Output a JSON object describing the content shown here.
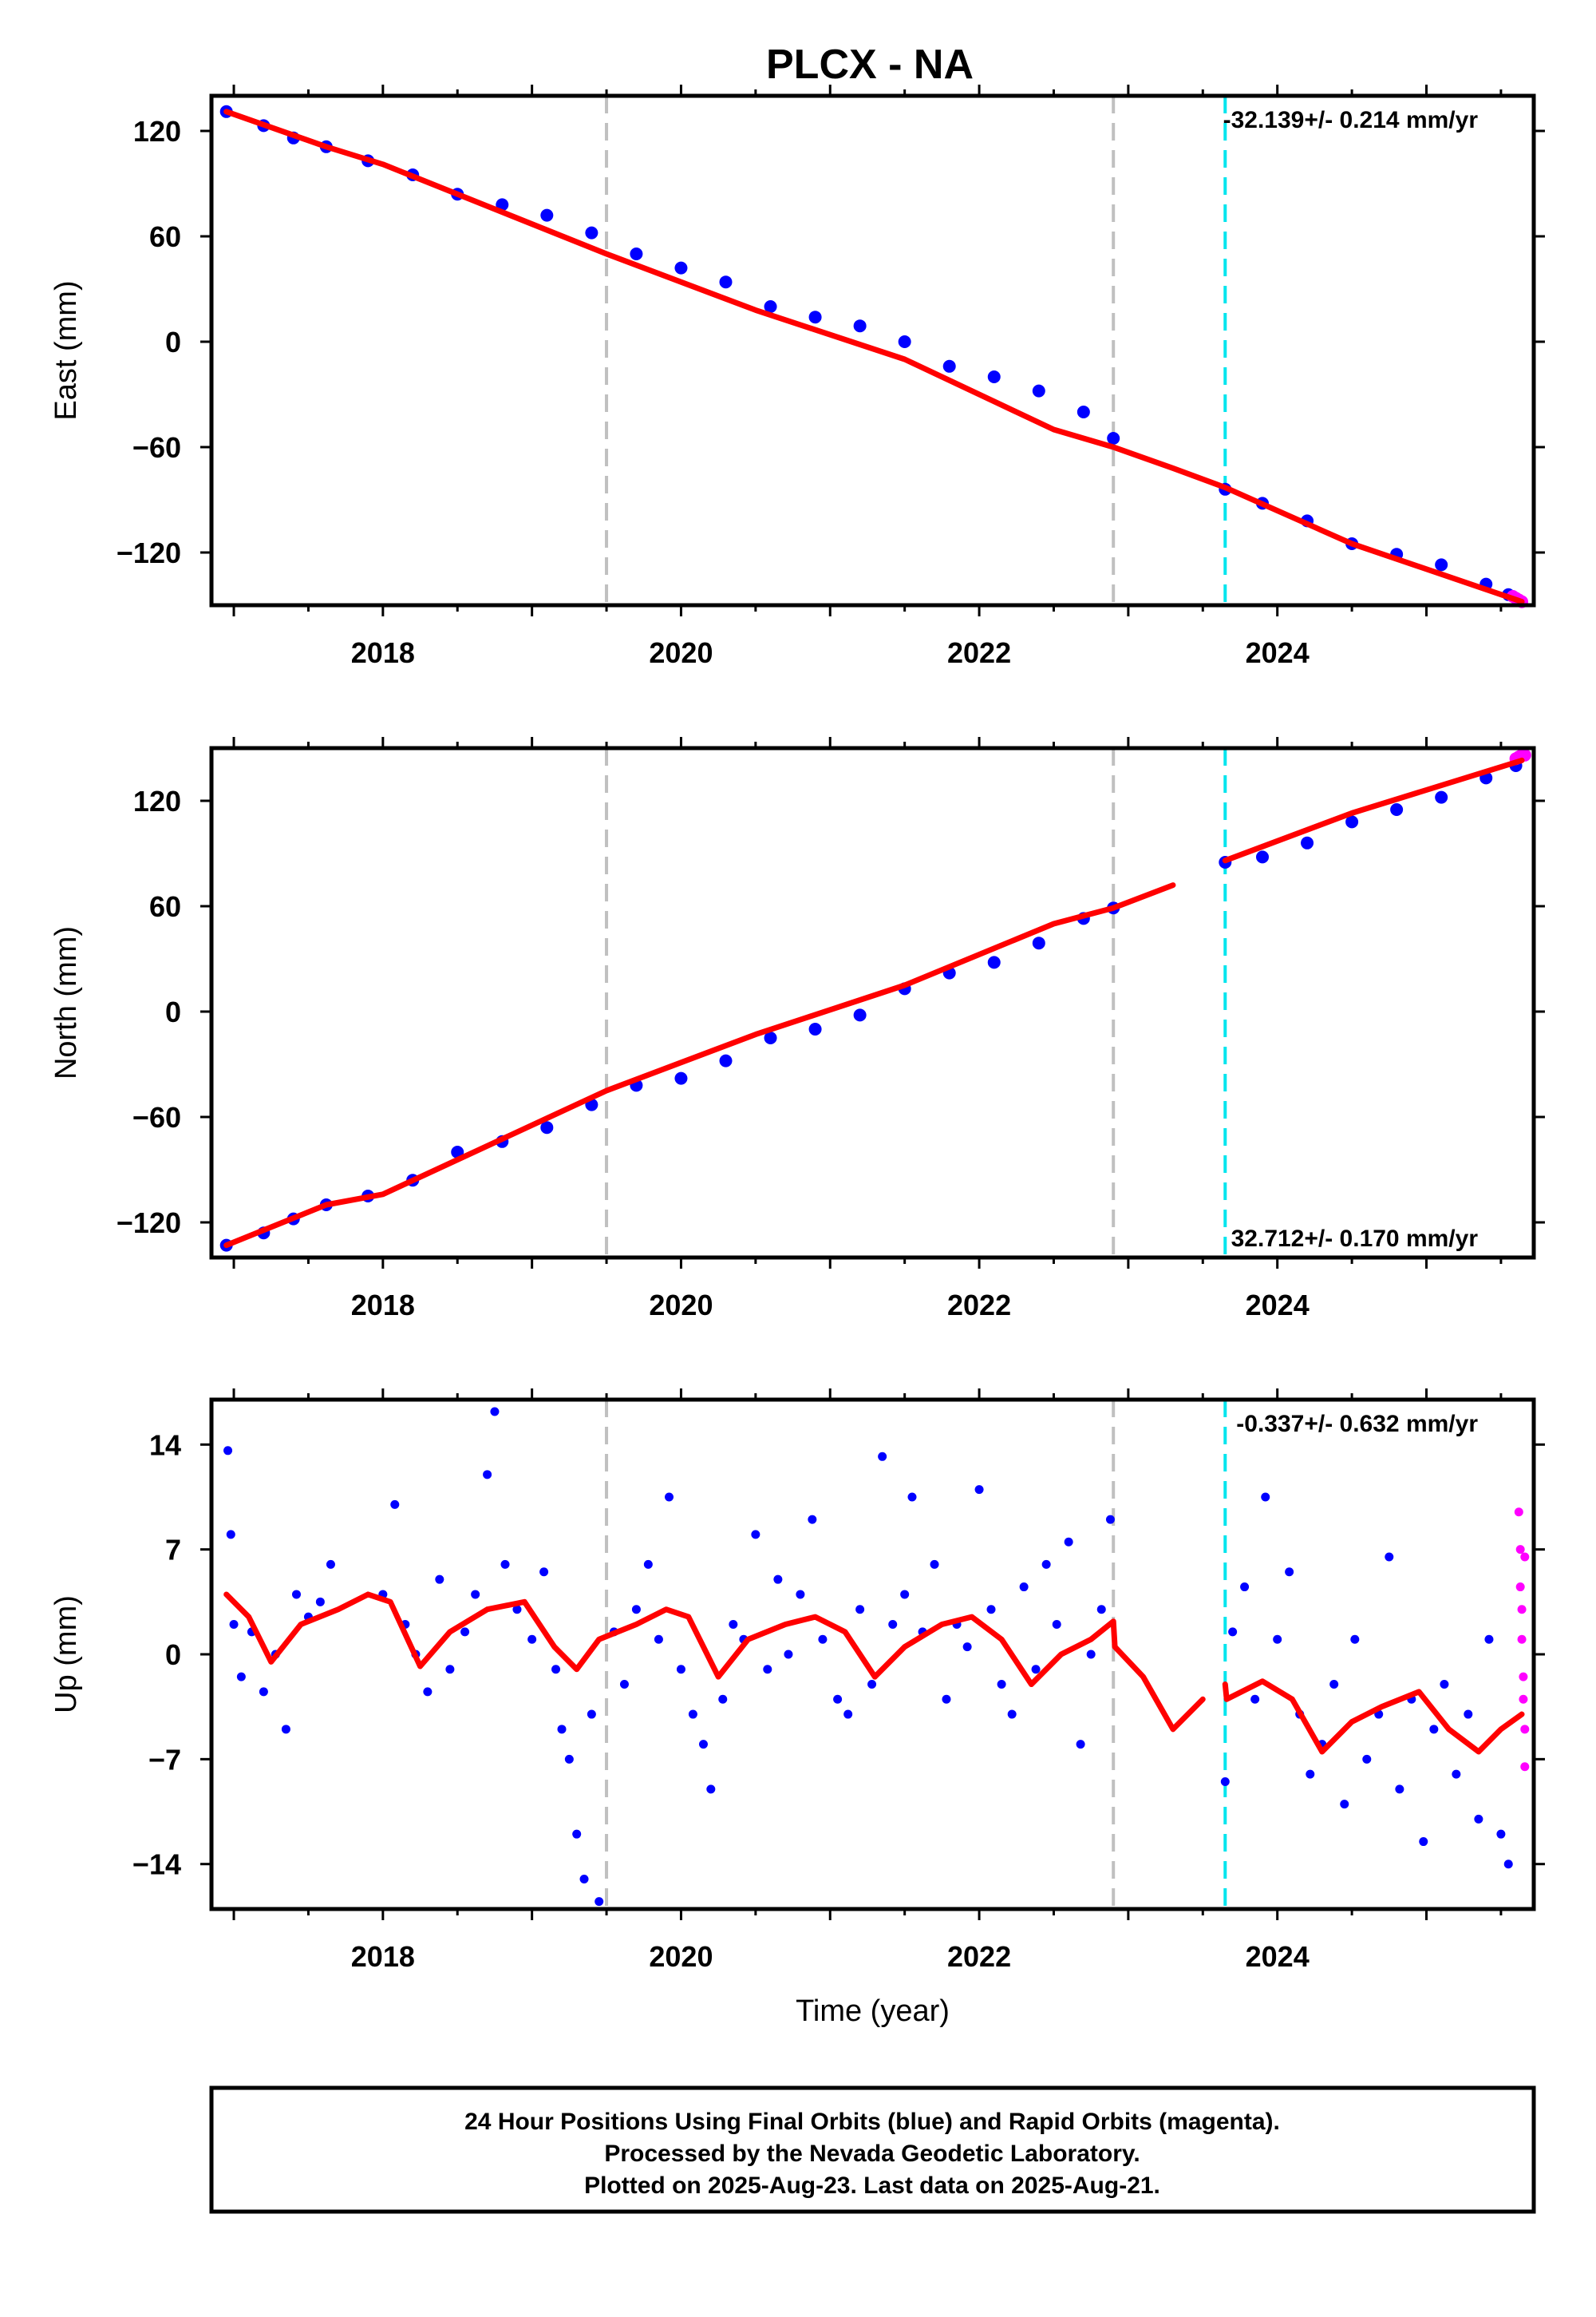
{
  "title": "PLCX - NA",
  "colors": {
    "final_orbits": "#0000ff",
    "rapid_orbits": "#ff00ff",
    "model": "#ff0000",
    "equipment_change": "#c0c0c0",
    "earthquake": "#00e5ee"
  },
  "chart_data": [
    {
      "type": "scatter",
      "panel": "east",
      "ylabel": "East (mm)",
      "xlabel": "",
      "xlim": [
        2016.85,
        2025.72
      ],
      "ylim": [
        -150,
        140
      ],
      "xticks": [
        2018,
        2020,
        2022,
        2024
      ],
      "yticks": [
        120,
        60,
        0,
        -60,
        -120
      ],
      "ytick_labels": [
        "120",
        "60",
        "0",
        "−60",
        "−120"
      ],
      "rate_label": "-32.139+/- 0.214 mm/yr",
      "rate_position": "top-right",
      "gray_lines": [
        2019.5,
        2022.9
      ],
      "cyan_lines": [
        2023.65
      ],
      "series": [
        {
          "role": "final_orbits",
          "x": [
            2016.95,
            2017.2,
            2017.4,
            2017.62,
            2017.9,
            2018.2,
            2018.5,
            2018.8,
            2019.1,
            2019.4,
            2019.7,
            2020.0,
            2020.3,
            2020.6,
            2020.9,
            2021.2,
            2021.5,
            2021.8,
            2022.1,
            2022.4,
            2022.7,
            2022.9,
            2023.65,
            2023.9,
            2024.2,
            2024.5,
            2024.8,
            2025.1,
            2025.4,
            2025.55
          ],
          "y": [
            131,
            123,
            116,
            111,
            103,
            95,
            84,
            78,
            72,
            62,
            50,
            42,
            34,
            20,
            14,
            9,
            0,
            -14,
            -20,
            -28,
            -40,
            -55,
            -84,
            -92,
            -102,
            -115,
            -121,
            -127,
            -138,
            -144
          ]
        },
        {
          "role": "rapid_orbits",
          "x": [
            2025.58,
            2025.6,
            2025.62,
            2025.64
          ],
          "y": [
            -145,
            -146,
            -147,
            -148
          ]
        },
        {
          "role": "model",
          "x": [
            2016.95,
            2017.62,
            2018.0,
            2019.5,
            2020.5,
            2021.5,
            2022.5,
            2022.9,
            2023.3,
            2023.65,
            2024.5,
            2025.64
          ],
          "y": [
            131,
            111,
            101,
            50,
            18,
            -10,
            -50,
            -60,
            -72,
            -83,
            -115,
            -148
          ]
        }
      ]
    },
    {
      "type": "scatter",
      "panel": "north",
      "ylabel": "North (mm)",
      "xlabel": "",
      "xlim": [
        2016.85,
        2025.72
      ],
      "ylim": [
        -140,
        150
      ],
      "xticks": [
        2018,
        2020,
        2022,
        2024
      ],
      "yticks": [
        120,
        60,
        0,
        -60,
        -120
      ],
      "ytick_labels": [
        "120",
        "60",
        "0",
        "−60",
        "−120"
      ],
      "rate_label": "32.712+/- 0.170 mm/yr",
      "rate_position": "bottom-right",
      "gray_lines": [
        2019.5,
        2022.9
      ],
      "cyan_lines": [
        2023.65
      ],
      "series": [
        {
          "role": "final_orbits",
          "x": [
            2016.95,
            2017.2,
            2017.4,
            2017.62,
            2017.9,
            2018.2,
            2018.5,
            2018.8,
            2019.1,
            2019.4,
            2019.7,
            2020.0,
            2020.3,
            2020.6,
            2020.9,
            2021.2,
            2021.5,
            2021.8,
            2022.1,
            2022.4,
            2022.7,
            2022.9,
            2023.65,
            2023.9,
            2024.2,
            2024.5,
            2024.8,
            2025.1,
            2025.4,
            2025.6
          ],
          "y": [
            -133,
            -126,
            -118,
            -110,
            -105,
            -96,
            -80,
            -74,
            -66,
            -53,
            -42,
            -38,
            -28,
            -15,
            -10,
            -2,
            13,
            22,
            28,
            39,
            53,
            59,
            85,
            88,
            96,
            108,
            115,
            122,
            133,
            140
          ]
        },
        {
          "role": "rapid_orbits",
          "x": [
            2025.6,
            2025.62,
            2025.64,
            2025.66
          ],
          "y": [
            144,
            145,
            146,
            146
          ]
        },
        {
          "role": "model",
          "x": [
            2016.95,
            2017.62,
            2018.0,
            2019.5,
            2020.5,
            2021.5,
            2022.5,
            2022.9,
            2023.3,
            2023.65,
            2024.5,
            2025.64
          ],
          "y": [
            -133,
            -110,
            -104,
            -45,
            -13,
            15,
            50,
            59,
            72,
            86,
            113,
            143
          ]
        }
      ]
    },
    {
      "type": "scatter",
      "panel": "up",
      "ylabel": "Up (mm)",
      "xlabel": "Time (year)",
      "xlim": [
        2016.85,
        2025.72
      ],
      "ylim": [
        -17,
        17
      ],
      "xticks": [
        2018,
        2020,
        2022,
        2024
      ],
      "yticks": [
        14,
        7,
        0,
        -7,
        -14
      ],
      "ytick_labels": [
        "14",
        "7",
        "0",
        "−7",
        "−14"
      ],
      "rate_label": "-0.337+/- 0.632 mm/yr",
      "rate_position": "top-right",
      "gray_lines": [
        2019.5,
        2022.9
      ],
      "cyan_lines": [
        2023.65
      ],
      "series": [
        {
          "role": "final_orbits",
          "x": [
            2016.96,
            2016.98,
            2017.0,
            2017.05,
            2017.12,
            2017.2,
            2017.28,
            2017.35,
            2017.42,
            2017.5,
            2017.58,
            2017.65,
            2018.0,
            2018.08,
            2018.15,
            2018.22,
            2018.3,
            2018.38,
            2018.45,
            2018.55,
            2018.62,
            2018.7,
            2018.75,
            2018.82,
            2018.9,
            2019.0,
            2019.08,
            2019.16,
            2019.2,
            2019.25,
            2019.3,
            2019.35,
            2019.4,
            2019.45,
            2019.55,
            2019.62,
            2019.7,
            2019.78,
            2019.85,
            2019.92,
            2020.0,
            2020.08,
            2020.15,
            2020.2,
            2020.28,
            2020.35,
            2020.42,
            2020.5,
            2020.58,
            2020.65,
            2020.72,
            2020.8,
            2020.88,
            2020.95,
            2021.05,
            2021.12,
            2021.2,
            2021.28,
            2021.35,
            2021.42,
            2021.5,
            2021.55,
            2021.62,
            2021.7,
            2021.78,
            2021.85,
            2021.92,
            2022.0,
            2022.08,
            2022.15,
            2022.22,
            2022.3,
            2022.38,
            2022.45,
            2022.52,
            2022.6,
            2022.68,
            2022.75,
            2022.82,
            2022.88,
            2023.65,
            2023.7,
            2023.78,
            2023.85,
            2023.92,
            2024.0,
            2024.08,
            2024.15,
            2024.22,
            2024.3,
            2024.38,
            2024.45,
            2024.52,
            2024.6,
            2024.68,
            2024.75,
            2024.82,
            2024.9,
            2024.98,
            2025.05,
            2025.12,
            2025.2,
            2025.28,
            2025.35,
            2025.42,
            2025.5,
            2025.55
          ],
          "y": [
            13.6,
            8.0,
            2.0,
            -1.5,
            1.5,
            -2.5,
            0.0,
            -5.0,
            4.0,
            2.5,
            3.5,
            6.0,
            4.0,
            10.0,
            2.0,
            0.0,
            -2.5,
            5.0,
            -1.0,
            1.5,
            4.0,
            12.0,
            16.2,
            6.0,
            3.0,
            1.0,
            5.5,
            -1.0,
            -5.0,
            -7.0,
            -12.0,
            -15.0,
            -4.0,
            -16.5,
            1.5,
            -2.0,
            3.0,
            6.0,
            1.0,
            10.5,
            -1.0,
            -4.0,
            -6.0,
            -9.0,
            -3.0,
            2.0,
            1.0,
            8.0,
            -1.0,
            5.0,
            0.0,
            4.0,
            9.0,
            1.0,
            -3.0,
            -4.0,
            3.0,
            -2.0,
            13.2,
            2.0,
            4.0,
            10.5,
            1.5,
            6.0,
            -3.0,
            2.0,
            0.5,
            11.0,
            3.0,
            -2.0,
            -4.0,
            4.5,
            -1.0,
            6.0,
            2.0,
            7.5,
            -6.0,
            0.0,
            3.0,
            9.0,
            -8.5,
            1.5,
            4.5,
            -3.0,
            10.5,
            1.0,
            5.5,
            -4.0,
            -8.0,
            -6.0,
            -2.0,
            -10.0,
            1.0,
            -7.0,
            -4.0,
            6.5,
            -9.0,
            -3.0,
            -12.5,
            -5.0,
            -2.0,
            -8.0,
            -4.0,
            -11.0,
            1.0,
            -12.0,
            -14.0
          ]
        },
        {
          "role": "rapid_orbits",
          "x": [
            2025.62,
            2025.63,
            2025.63,
            2025.64,
            2025.64,
            2025.65,
            2025.65,
            2025.66,
            2025.66,
            2025.66
          ],
          "y": [
            9.5,
            7.0,
            4.5,
            3.0,
            1.0,
            -1.5,
            -3.0,
            -5.0,
            -7.5,
            6.5
          ]
        },
        {
          "role": "model",
          "x": [
            2016.95,
            2017.1,
            2017.25,
            2017.45,
            2017.7,
            2017.9,
            2018.05,
            2018.25,
            2018.45,
            2018.7,
            2018.95,
            2019.15,
            2019.3,
            2019.45,
            2019.7,
            2019.9,
            2020.05,
            2020.25,
            2020.45,
            2020.7,
            2020.9,
            2021.1,
            2021.3,
            2021.5,
            2021.75,
            2021.95,
            2022.15,
            2022.35,
            2022.55,
            2022.75,
            2022.9,
            2022.91,
            2023.1,
            2023.3,
            2023.5,
            2023.65,
            2023.66,
            2023.9,
            2024.1,
            2024.3,
            2024.5,
            2024.7,
            2024.95,
            2025.15,
            2025.35,
            2025.5,
            2025.64
          ],
          "y": [
            4.0,
            2.5,
            -0.5,
            2.0,
            3.0,
            4.0,
            3.5,
            -0.8,
            1.5,
            3.0,
            3.5,
            0.5,
            -1.0,
            1.0,
            2.0,
            3.0,
            2.5,
            -1.5,
            1.0,
            2.0,
            2.5,
            1.5,
            -1.5,
            0.5,
            2.0,
            2.5,
            1.0,
            -2.0,
            0.0,
            1.0,
            2.2,
            0.5,
            -1.5,
            -5.0,
            -3.0,
            -2.0,
            -3.0,
            -1.8,
            -3.0,
            -6.5,
            -4.5,
            -3.5,
            -2.5,
            -5.0,
            -6.5,
            -5.0,
            -4.0
          ]
        }
      ]
    }
  ],
  "footer": {
    "line1": "24 Hour Positions Using Final Orbits (blue) and Rapid Orbits (magenta).",
    "line2": "Processed by the Nevada Geodetic Laboratory.",
    "line3": "Plotted on 2025-Aug-23. Last data on 2025-Aug-21."
  }
}
